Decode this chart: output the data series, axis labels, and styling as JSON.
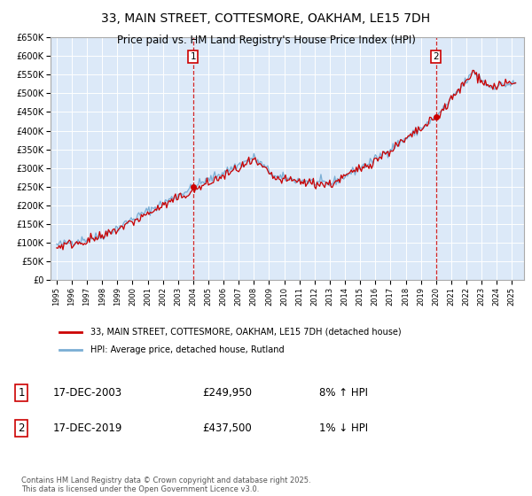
{
  "title_line1": "33, MAIN STREET, COTTESMORE, OAKHAM, LE15 7DH",
  "title_line2": "Price paid vs. HM Land Registry's House Price Index (HPI)",
  "legend_label_red": "33, MAIN STREET, COTTESMORE, OAKHAM, LE15 7DH (detached house)",
  "legend_label_blue": "HPI: Average price, detached house, Rutland",
  "annotation1_label": "1",
  "annotation1_date": "17-DEC-2003",
  "annotation1_price": "£249,950",
  "annotation1_hpi": "8% ↑ HPI",
  "annotation2_label": "2",
  "annotation2_date": "17-DEC-2019",
  "annotation2_price": "£437,500",
  "annotation2_hpi": "1% ↓ HPI",
  "footer": "Contains HM Land Registry data © Crown copyright and database right 2025.\nThis data is licensed under the Open Government Licence v3.0.",
  "sale1_year": 2003.96,
  "sale1_value": 249950,
  "sale2_year": 2019.96,
  "sale2_value": 437500,
  "ylim": [
    0,
    650000
  ],
  "xlim_start": 1994.6,
  "xlim_end": 2025.8,
  "bg_color": "#dce9f8",
  "line_color_red": "#cc0000",
  "line_color_blue": "#7aaed4",
  "grid_color": "#ffffff",
  "title_fontsize": 10,
  "subtitle_fontsize": 9,
  "fig_bg": "#ffffff"
}
